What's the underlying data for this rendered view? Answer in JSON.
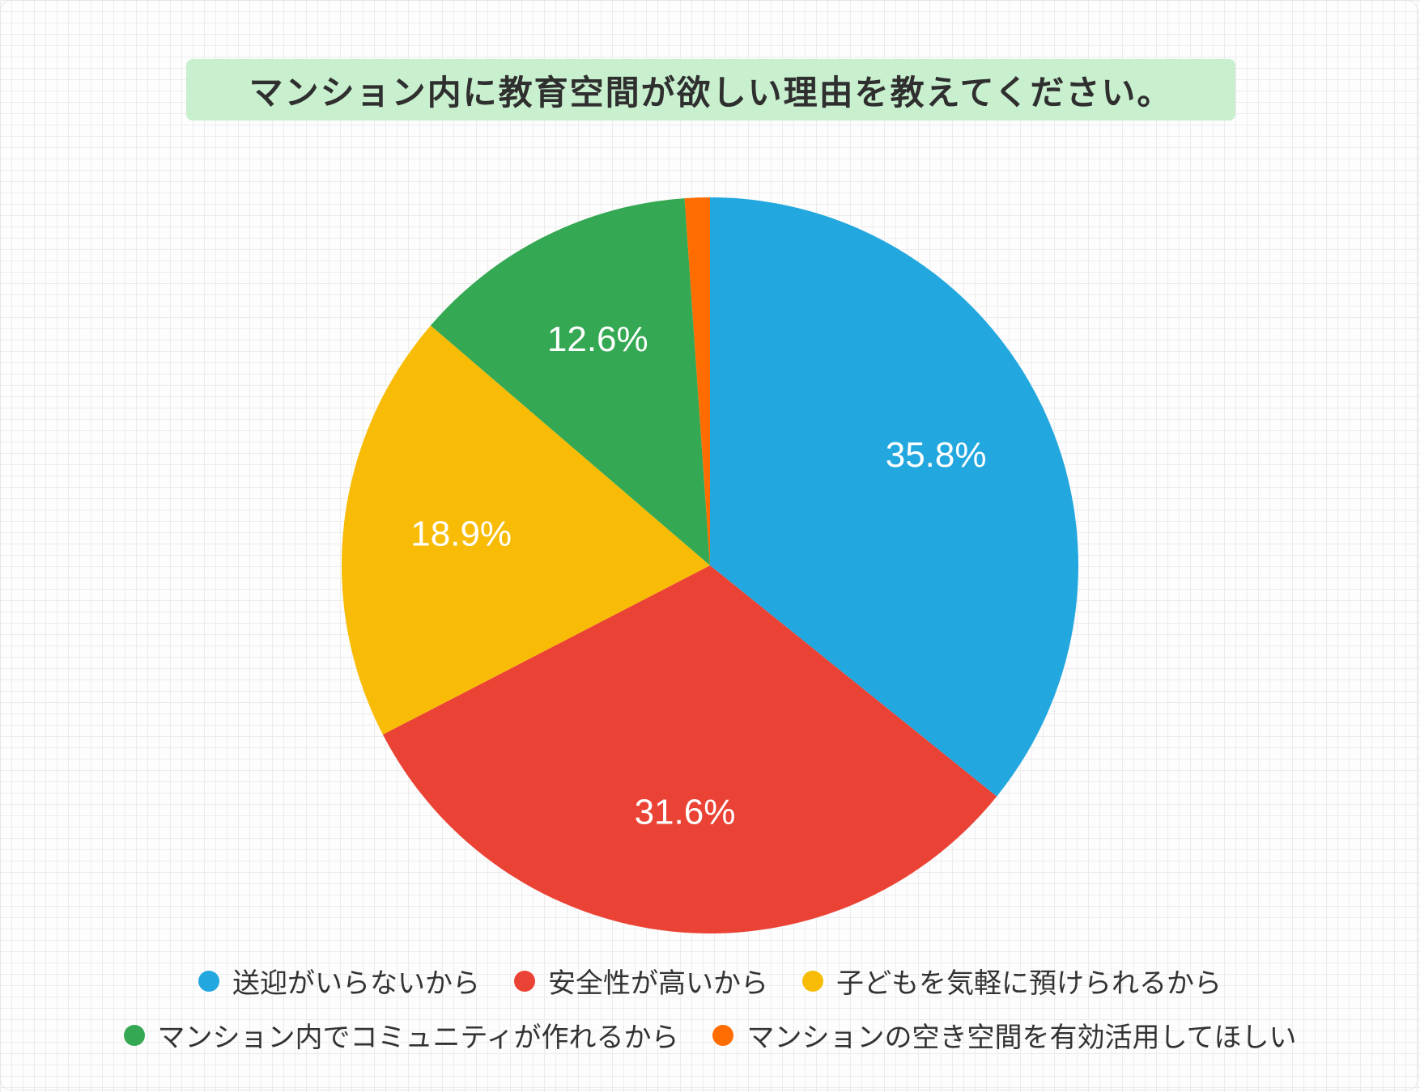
{
  "title": "マンション内に教育空間が欲しい理由を教えてください。",
  "chart_data": {
    "type": "pie",
    "title": "マンション内に教育空間が欲しい理由を教えてください。",
    "slices": [
      {
        "label": "送迎がいらないから",
        "value": 35.8,
        "display": "35.8%",
        "color": "#22a7df"
      },
      {
        "label": "安全性が高いから",
        "value": 31.6,
        "display": "31.6%",
        "color": "#ea4335"
      },
      {
        "label": "子どもを気軽に預けられるから",
        "value": 18.9,
        "display": "18.9%",
        "color": "#f9bc06"
      },
      {
        "label": "マンション内でコミュニティが作れるから",
        "value": 12.6,
        "display": "12.6%",
        "color": "#34a853"
      },
      {
        "label": "マンションの空き空間を有効活用してほしい",
        "value": 1.1,
        "display": "",
        "color": "#ff6d01"
      }
    ],
    "legend_position": "bottom"
  }
}
